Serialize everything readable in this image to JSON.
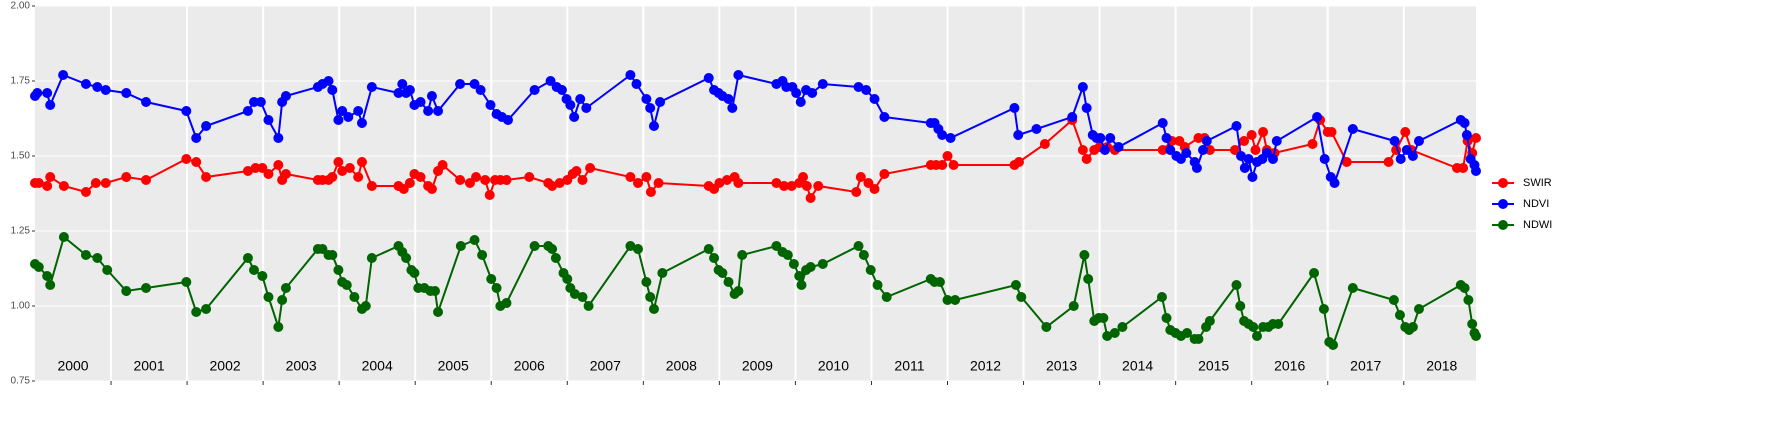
{
  "chart_data": {
    "type": "line",
    "xlim": [
      2000,
      2018.95
    ],
    "ylim": [
      0.75,
      2.0
    ],
    "yticks": [
      {
        "value": 0.75,
        "label": "0.75"
      },
      {
        "value": 1.0,
        "label": "1.00"
      },
      {
        "value": 1.25,
        "label": "1.25"
      },
      {
        "value": 1.5,
        "label": "1.50"
      },
      {
        "value": 1.75,
        "label": "1.75"
      },
      {
        "value": 2.0,
        "label": "2.00"
      }
    ],
    "xticks": [
      {
        "value": 2000.5,
        "label": "2000"
      },
      {
        "value": 2001.5,
        "label": "2001"
      },
      {
        "value": 2002.5,
        "label": "2002"
      },
      {
        "value": 2003.5,
        "label": "2003"
      },
      {
        "value": 2004.5,
        "label": "2004"
      },
      {
        "value": 2005.5,
        "label": "2005"
      },
      {
        "value": 2006.5,
        "label": "2006"
      },
      {
        "value": 2007.5,
        "label": "2007"
      },
      {
        "value": 2008.5,
        "label": "2008"
      },
      {
        "value": 2009.5,
        "label": "2009"
      },
      {
        "value": 2010.5,
        "label": "2010"
      },
      {
        "value": 2011.5,
        "label": "2011"
      },
      {
        "value": 2012.5,
        "label": "2012"
      },
      {
        "value": 2013.5,
        "label": "2013"
      },
      {
        "value": 2014.5,
        "label": "2014"
      },
      {
        "value": 2015.5,
        "label": "2015"
      },
      {
        "value": 2016.5,
        "label": "2016"
      },
      {
        "value": 2017.5,
        "label": "2017"
      },
      {
        "value": 2018.5,
        "label": "2018"
      }
    ],
    "xgrid": [
      2001,
      2002,
      2003,
      2004,
      2005,
      2006,
      2007,
      2008,
      2009,
      2010,
      2011,
      2012,
      2013,
      2014,
      2015,
      2016,
      2017,
      2018
    ],
    "grid": true,
    "legend": "right",
    "series": [
      {
        "name": "SWIR",
        "color": "#ff0000",
        "x": [
          2000.0,
          2000.05,
          2000.16,
          2000.2,
          2000.38,
          2000.67,
          2000.8,
          2000.93,
          2001.2,
          2001.46,
          2001.99,
          2002.12,
          2002.25,
          2002.8,
          2002.9,
          2002.99,
          2003.07,
          2003.2,
          2003.25,
          2003.3,
          2003.72,
          2003.78,
          2003.86,
          2003.91,
          2003.99,
          2004.04,
          2004.14,
          2004.25,
          2004.3,
          2004.43,
          2004.78,
          2004.85,
          2004.93,
          2004.99,
          2005.07,
          2005.17,
          2005.22,
          2005.3,
          2005.36,
          2005.59,
          2005.72,
          2005.8,
          2005.92,
          2005.98,
          2006.05,
          2006.12,
          2006.2,
          2006.5,
          2006.75,
          2006.8,
          2006.9,
          2007.0,
          2007.07,
          2007.12,
          2007.2,
          2007.3,
          2007.83,
          2007.93,
          2008.04,
          2008.1,
          2008.2,
          2008.86,
          2008.93,
          2009.0,
          2009.1,
          2009.2,
          2009.25,
          2009.75,
          2009.85,
          2009.95,
          2010.05,
          2010.1,
          2010.15,
          2010.2,
          2010.3,
          2010.8,
          2010.86,
          2010.96,
          2011.04,
          2011.17,
          2011.78,
          2011.85,
          2011.93,
          2012.0,
          2012.08,
          2012.88,
          2012.94,
          2013.28,
          2013.64,
          2013.78,
          2013.83,
          2013.93,
          2014.0,
          2014.1,
          2014.2,
          2014.83,
          2014.95,
          2015.05,
          2015.12,
          2015.3,
          2015.38,
          2015.45,
          2015.78,
          2015.9,
          2016.0,
          2016.05,
          2016.15,
          2016.2,
          2016.3,
          2016.8,
          2016.9,
          2017.0,
          2017.05,
          2017.25,
          2017.8,
          2017.9,
          2018.02,
          2018.1,
          2018.7,
          2018.78,
          2018.84,
          2018.9,
          2018.95
        ],
        "values": [
          1.41,
          1.41,
          1.4,
          1.43,
          1.4,
          1.38,
          1.41,
          1.41,
          1.43,
          1.42,
          1.49,
          1.48,
          1.43,
          1.45,
          1.46,
          1.46,
          1.44,
          1.47,
          1.42,
          1.44,
          1.42,
          1.42,
          1.42,
          1.43,
          1.48,
          1.45,
          1.46,
          1.43,
          1.48,
          1.4,
          1.4,
          1.39,
          1.41,
          1.44,
          1.43,
          1.4,
          1.39,
          1.45,
          1.47,
          1.42,
          1.41,
          1.43,
          1.42,
          1.37,
          1.42,
          1.42,
          1.42,
          1.43,
          1.41,
          1.4,
          1.41,
          1.42,
          1.44,
          1.45,
          1.42,
          1.46,
          1.43,
          1.41,
          1.43,
          1.38,
          1.41,
          1.4,
          1.39,
          1.41,
          1.42,
          1.43,
          1.41,
          1.41,
          1.4,
          1.4,
          1.41,
          1.43,
          1.4,
          1.36,
          1.4,
          1.38,
          1.43,
          1.41,
          1.39,
          1.44,
          1.47,
          1.47,
          1.47,
          1.5,
          1.47,
          1.47,
          1.48,
          1.54,
          1.62,
          1.52,
          1.49,
          1.52,
          1.53,
          1.53,
          1.52,
          1.52,
          1.55,
          1.55,
          1.53,
          1.56,
          1.56,
          1.52,
          1.52,
          1.55,
          1.57,
          1.52,
          1.58,
          1.52,
          1.51,
          1.54,
          1.62,
          1.58,
          1.58,
          1.48,
          1.48,
          1.52,
          1.58,
          1.52,
          1.46,
          1.46,
          1.55,
          1.51,
          1.56
        ]
      },
      {
        "name": "NDVI",
        "color": "#0000ff",
        "x": [
          2000.0,
          2000.03,
          2000.16,
          2000.2,
          2000.37,
          2000.67,
          2000.82,
          2000.93,
          2001.2,
          2001.46,
          2001.99,
          2002.12,
          2002.25,
          2002.8,
          2002.88,
          2002.97,
          2003.07,
          2003.2,
          2003.25,
          2003.3,
          2003.72,
          2003.78,
          2003.86,
          2003.91,
          2003.99,
          2004.04,
          2004.12,
          2004.25,
          2004.3,
          2004.43,
          2004.78,
          2004.83,
          2004.88,
          2004.93,
          2004.99,
          2005.07,
          2005.17,
          2005.22,
          2005.3,
          2005.59,
          2005.78,
          2005.86,
          2005.99,
          2006.07,
          2006.14,
          2006.22,
          2006.57,
          2006.78,
          2006.86,
          2006.93,
          2006.99,
          2007.04,
          2007.09,
          2007.17,
          2007.25,
          2007.83,
          2007.91,
          2008.04,
          2008.09,
          2008.14,
          2008.22,
          2008.86,
          2008.93,
          2008.99,
          2009.04,
          2009.12,
          2009.17,
          2009.25,
          2009.75,
          2009.83,
          2009.88,
          2009.96,
          2010.01,
          2010.07,
          2010.14,
          2010.22,
          2010.36,
          2010.83,
          2010.93,
          2011.04,
          2011.17,
          2011.78,
          2011.83,
          2011.88,
          2011.93,
          2012.04,
          2012.88,
          2012.93,
          2013.17,
          2013.64,
          2013.78,
          2013.83,
          2013.91,
          2013.96,
          2014.01,
          2014.07,
          2014.14,
          2014.25,
          2014.83,
          2014.88,
          2014.93,
          2015.01,
          2015.07,
          2015.14,
          2015.25,
          2015.28,
          2015.36,
          2015.41,
          2015.8,
          2015.86,
          2015.91,
          2015.96,
          2016.01,
          2016.07,
          2016.14,
          2016.2,
          2016.28,
          2016.33,
          2016.86,
          2016.96,
          2017.04,
          2017.09,
          2017.33,
          2017.88,
          2017.96,
          2018.04,
          2018.12,
          2018.2,
          2018.75,
          2018.8,
          2018.83,
          2018.88,
          2018.93,
          2018.95
        ],
        "values": [
          1.7,
          1.71,
          1.71,
          1.67,
          1.77,
          1.74,
          1.73,
          1.72,
          1.71,
          1.68,
          1.65,
          1.56,
          1.6,
          1.65,
          1.68,
          1.68,
          1.62,
          1.56,
          1.68,
          1.7,
          1.73,
          1.74,
          1.75,
          1.72,
          1.62,
          1.65,
          1.63,
          1.65,
          1.61,
          1.73,
          1.71,
          1.74,
          1.71,
          1.72,
          1.67,
          1.68,
          1.65,
          1.7,
          1.65,
          1.74,
          1.74,
          1.72,
          1.67,
          1.64,
          1.63,
          1.62,
          1.72,
          1.75,
          1.73,
          1.72,
          1.69,
          1.67,
          1.63,
          1.69,
          1.66,
          1.77,
          1.74,
          1.69,
          1.66,
          1.6,
          1.68,
          1.76,
          1.72,
          1.71,
          1.7,
          1.69,
          1.66,
          1.77,
          1.74,
          1.75,
          1.73,
          1.73,
          1.71,
          1.68,
          1.72,
          1.71,
          1.74,
          1.73,
          1.72,
          1.69,
          1.63,
          1.61,
          1.61,
          1.59,
          1.57,
          1.56,
          1.66,
          1.57,
          1.59,
          1.63,
          1.73,
          1.66,
          1.57,
          1.56,
          1.56,
          1.52,
          1.56,
          1.53,
          1.61,
          1.56,
          1.52,
          1.5,
          1.49,
          1.51,
          1.48,
          1.46,
          1.52,
          1.55,
          1.6,
          1.5,
          1.46,
          1.49,
          1.43,
          1.48,
          1.49,
          1.51,
          1.49,
          1.55,
          1.63,
          1.49,
          1.43,
          1.41,
          1.59,
          1.55,
          1.49,
          1.52,
          1.5,
          1.55,
          1.62,
          1.61,
          1.57,
          1.49,
          1.47,
          1.45
        ]
      },
      {
        "name": "NDWI",
        "color": "#006400",
        "x": [
          2000.0,
          2000.05,
          2000.16,
          2000.2,
          2000.38,
          2000.67,
          2000.82,
          2000.95,
          2001.2,
          2001.46,
          2001.99,
          2002.12,
          2002.25,
          2002.8,
          2002.88,
          2002.99,
          2003.07,
          2003.2,
          2003.25,
          2003.3,
          2003.72,
          2003.78,
          2003.86,
          2003.91,
          2003.99,
          2004.04,
          2004.1,
          2004.2,
          2004.3,
          2004.35,
          2004.43,
          2004.78,
          2004.83,
          2004.88,
          2004.95,
          2004.99,
          2005.04,
          2005.12,
          2005.2,
          2005.26,
          2005.3,
          2005.6,
          2005.78,
          2005.88,
          2006.0,
          2006.07,
          2006.12,
          2006.2,
          2006.57,
          2006.75,
          2006.8,
          2006.85,
          2006.95,
          2007.0,
          2007.04,
          2007.1,
          2007.2,
          2007.28,
          2007.83,
          2007.93,
          2008.04,
          2008.09,
          2008.14,
          2008.25,
          2008.86,
          2008.93,
          2008.99,
          2009.04,
          2009.12,
          2009.2,
          2009.25,
          2009.3,
          2009.75,
          2009.83,
          2009.9,
          2009.98,
          2010.05,
          2010.08,
          2010.14,
          2010.2,
          2010.36,
          2010.83,
          2010.9,
          2010.99,
          2011.08,
          2011.2,
          2011.78,
          2011.83,
          2011.9,
          2012.0,
          2012.1,
          2012.9,
          2012.97,
          2013.3,
          2013.66,
          2013.8,
          2013.85,
          2013.93,
          2013.99,
          2014.05,
          2014.1,
          2014.2,
          2014.3,
          2014.82,
          2014.88,
          2014.93,
          2015.0,
          2015.07,
          2015.15,
          2015.25,
          2015.3,
          2015.4,
          2015.45,
          2015.8,
          2015.85,
          2015.9,
          2015.96,
          2016.02,
          2016.07,
          2016.15,
          2016.22,
          2016.28,
          2016.35,
          2016.82,
          2016.95,
          2017.02,
          2017.07,
          2017.33,
          2017.87,
          2017.95,
          2018.02,
          2018.07,
          2018.12,
          2018.2,
          2018.75,
          2018.8,
          2018.85,
          2018.9,
          2018.93,
          2018.95
        ],
        "values": [
          1.14,
          1.13,
          1.1,
          1.07,
          1.23,
          1.17,
          1.16,
          1.12,
          1.05,
          1.06,
          1.08,
          0.98,
          0.99,
          1.16,
          1.12,
          1.1,
          1.03,
          0.93,
          1.02,
          1.06,
          1.19,
          1.19,
          1.17,
          1.17,
          1.12,
          1.08,
          1.07,
          1.03,
          0.99,
          1.0,
          1.16,
          1.2,
          1.18,
          1.16,
          1.12,
          1.11,
          1.06,
          1.06,
          1.05,
          1.05,
          0.98,
          1.2,
          1.22,
          1.17,
          1.09,
          1.06,
          1.0,
          1.01,
          1.2,
          1.2,
          1.19,
          1.16,
          1.11,
          1.09,
          1.06,
          1.04,
          1.03,
          1.0,
          1.2,
          1.19,
          1.08,
          1.03,
          0.99,
          1.11,
          1.19,
          1.16,
          1.12,
          1.11,
          1.08,
          1.04,
          1.05,
          1.17,
          1.2,
          1.18,
          1.17,
          1.14,
          1.1,
          1.07,
          1.12,
          1.13,
          1.14,
          1.2,
          1.17,
          1.12,
          1.07,
          1.03,
          1.09,
          1.08,
          1.08,
          1.02,
          1.02,
          1.07,
          1.03,
          0.93,
          1.0,
          1.17,
          1.09,
          0.95,
          0.96,
          0.96,
          0.9,
          0.91,
          0.93,
          1.03,
          0.96,
          0.92,
          0.91,
          0.9,
          0.91,
          0.89,
          0.89,
          0.93,
          0.95,
          1.07,
          1.0,
          0.95,
          0.94,
          0.93,
          0.9,
          0.93,
          0.93,
          0.94,
          0.94,
          1.11,
          0.99,
          0.88,
          0.87,
          1.06,
          1.02,
          0.97,
          0.93,
          0.92,
          0.93,
          0.99,
          1.07,
          1.06,
          1.02,
          0.94,
          0.91,
          0.9
        ]
      }
    ]
  }
}
